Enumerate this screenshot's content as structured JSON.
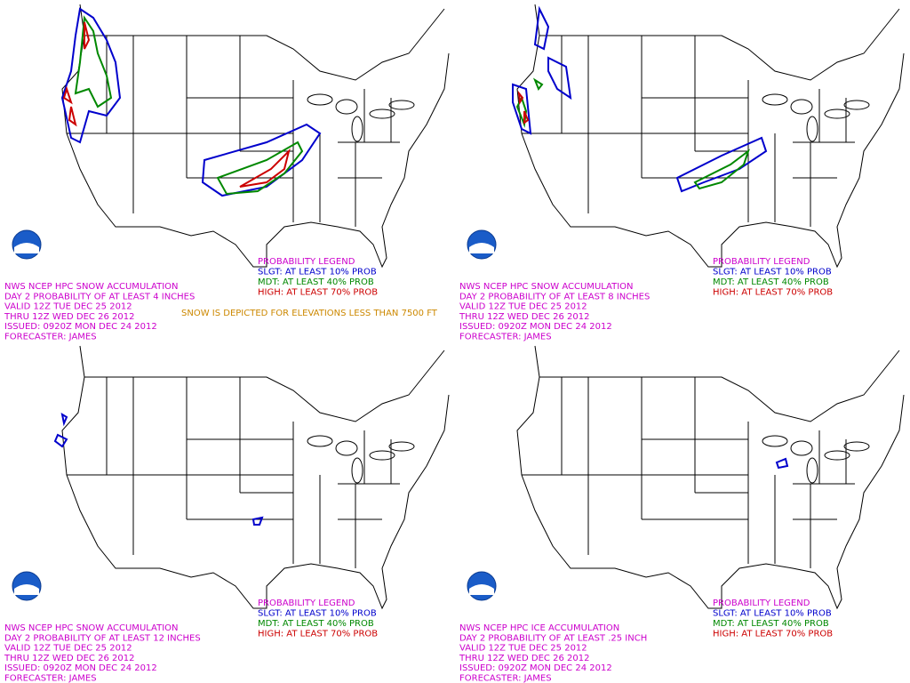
{
  "panels": [
    {
      "header": [
        "NWS NCEP HPC SNOW ACCUMULATION",
        "DAY 2 PROBABILITY OF AT LEAST 4 INCHES",
        "VALID 12Z TUE DEC 25 2012",
        "THRU 12Z WED DEC 26 2012",
        "ISSUED: 0920Z MON DEC 24 2012",
        "FORECASTER: JAMES"
      ],
      "legend": {
        "title": "PROBABILITY LEGEND",
        "items": [
          "SLGT: AT LEAST 10% PROB",
          "MDT: AT LEAST 40% PROB",
          "HIGH: AT LEAST 70% PROB"
        ]
      },
      "note": "SNOW IS DEPICTED FOR ELEVATIONS LESS THAN 7500 FT"
    },
    {
      "header": [
        "NWS NCEP HPC SNOW ACCUMULATION",
        "DAY 2 PROBABILITY OF AT LEAST 8 INCHES",
        "VALID 12Z TUE DEC 25 2012",
        "THRU 12Z WED DEC 26 2012",
        "ISSUED: 0920Z MON DEC 24 2012",
        "FORECASTER: JAMES"
      ],
      "legend": {
        "title": "PROBABILITY LEGEND",
        "items": [
          "SLGT: AT LEAST 10% PROB",
          "MDT: AT LEAST 40% PROB",
          "HIGH: AT LEAST 70% PROB"
        ]
      }
    },
    {
      "header": [
        "NWS NCEP HPC SNOW ACCUMULATION",
        "DAY 2 PROBABILITY OF AT LEAST 12 INCHES",
        "VALID 12Z TUE DEC 25 2012",
        "THRU 12Z WED DEC 26 2012",
        "ISSUED: 0920Z MON DEC 24 2012",
        "FORECASTER: JAMES"
      ],
      "legend": {
        "title": "PROBABILITY LEGEND",
        "items": [
          "SLGT: AT LEAST 10% PROB",
          "MDT: AT LEAST 40% PROB",
          "HIGH: AT LEAST 70% PROB"
        ]
      }
    },
    {
      "header": [
        "NWS NCEP HPC ICE ACCUMULATION",
        "DAY 2 PROBABILITY OF AT LEAST .25 INCH",
        "VALID 12Z TUE DEC 25 2012",
        "THRU 12Z WED DEC 26 2012",
        "ISSUED: 0920Z MON DEC 24 2012",
        "FORECASTER: JAMES"
      ],
      "legend": {
        "title": "PROBABILITY LEGEND",
        "items": [
          "SLGT: AT LEAST 10% PROB",
          "MDT: AT LEAST 40% PROB",
          "HIGH: AT LEAST 70% PROB"
        ]
      }
    }
  ]
}
